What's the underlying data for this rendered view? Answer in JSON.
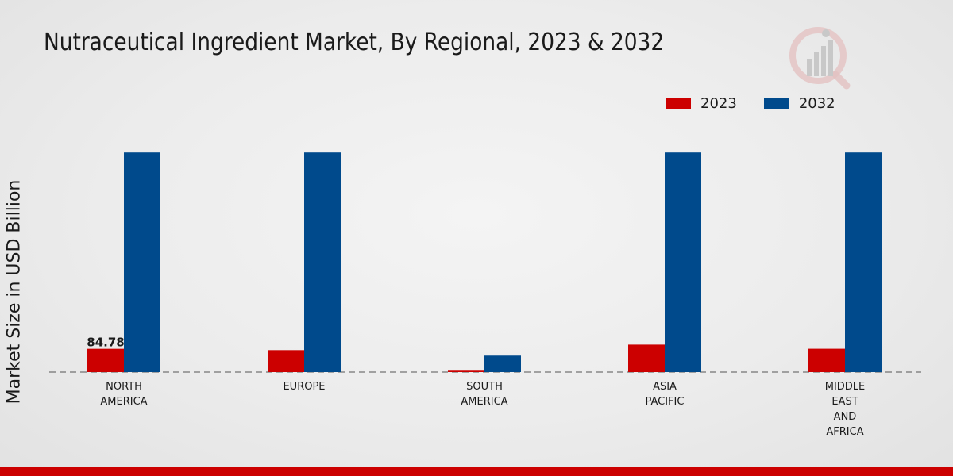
{
  "chart_data": {
    "type": "bar",
    "title": "Nutraceutical Ingredient Market, By Regional, 2023 & 2032",
    "xlabel": "",
    "ylabel": "Market Size in USD Billion",
    "categories": [
      "NORTH\nAMERICA",
      "EUROPE",
      "SOUTH\nAMERICA",
      "ASIA\nPACIFIC",
      "MIDDLE\nEAST\nAND\nAFRICA"
    ],
    "series": [
      {
        "name": "2023",
        "color": "#cc0000",
        "values": [
          84.78,
          80.0,
          5.0,
          100.0,
          85.0
        ]
      },
      {
        "name": "2032",
        "color": "#004a8c",
        "values": [
          800.0,
          800.0,
          60.0,
          800.0,
          800.0
        ]
      }
    ],
    "data_labels": [
      {
        "series": "2023",
        "category_index": 0,
        "text": "84.78"
      }
    ],
    "ylim": [
      0,
      1000
    ],
    "grid": false,
    "legend_position": "top-right"
  }
}
